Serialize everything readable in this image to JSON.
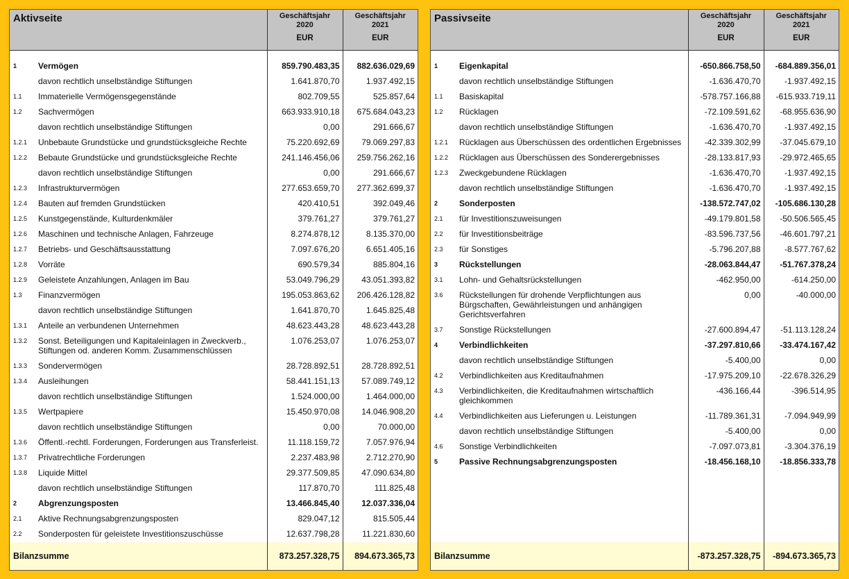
{
  "aktiv": {
    "title": "Aktivseite",
    "columns": [
      {
        "year": "Geschäftsjahr\n2020",
        "unit": "EUR"
      },
      {
        "year": "Geschäftsjahr\n2021",
        "unit": "EUR"
      }
    ],
    "rows": [
      [
        "1",
        "Vermögen",
        "859.790.483,35",
        "882.636.029,69"
      ],
      [
        null,
        "davon rechtlich unselbständige Stiftungen",
        "1.641.870,70",
        "1.937.492,15"
      ],
      [
        "1.1",
        "Immaterielle Vermögensgegenstände",
        "802.709,55",
        "525.857,64"
      ],
      [
        "1.2",
        "Sachvermögen",
        "663.933.910,18",
        "675.684.043,23"
      ],
      [
        null,
        "davon rechtlich unselbständige Stiftungen",
        "0,00",
        "291.666,67"
      ],
      [
        "1.2.1",
        "Unbebaute Grundstücke und grundstücksgleiche Rechte",
        "75.220.692,69",
        "79.069.297,83"
      ],
      [
        "1.2.2",
        "Bebaute Grundstücke und grundstücksgleiche Rechte",
        "241.146.456,06",
        "259.756.262,16"
      ],
      [
        null,
        "davon rechtlich unselbständige Stiftungen",
        "0,00",
        "291.666,67"
      ],
      [
        "1.2.3",
        "Infrastrukturvermögen",
        "277.653.659,70",
        "277.362.699,37"
      ],
      [
        "1.2.4",
        "Bauten auf fremden Grundstücken",
        "420.410,51",
        "392.049,46"
      ],
      [
        "1.2.5",
        "Kunstgegenstände, Kulturdenkmäler",
        "379.761,27",
        "379.761,27"
      ],
      [
        "1.2.6",
        "Maschinen und technische Anlagen, Fahrzeuge",
        "8.274.878,12",
        "8.135.370,00"
      ],
      [
        "1.2.7",
        "Betriebs- und Geschäftsausstattung",
        "7.097.676,20",
        "6.651.405,16"
      ],
      [
        "1.2.8",
        "Vorräte",
        "690.579,34",
        "885.804,16"
      ],
      [
        "1.2.9",
        "Geleistete Anzahlungen, Anlagen im Bau",
        "53.049.796,29",
        "43.051.393,82"
      ],
      [
        "1.3",
        "Finanzvermögen",
        "195.053.863,62",
        "206.426.128,82"
      ],
      [
        null,
        "davon rechtlich unselbständige Stiftungen",
        "1.641.870,70",
        "1.645.825,48"
      ],
      [
        "1.3.1",
        "Anteile an verbundenen Unternehmen",
        "48.623.443,28",
        "48.623.443,28"
      ],
      [
        "1.3.2",
        "Sonst. Beteiligungen und Kapitaleinlagen in Zweckverb.,\nStiftungen od. anderen Komm. Zusammenschlüssen",
        "1.076.253,07",
        "1.076.253,07"
      ],
      [
        "1.3.3",
        "Sondervermögen",
        "28.728.892,51",
        "28.728.892,51"
      ],
      [
        "1.3.4",
        "Ausleihungen",
        "58.441.151,13",
        "57.089.749,12"
      ],
      [
        null,
        "davon rechtlich unselbständige Stiftungen",
        "1.524.000,00",
        "1.464.000,00"
      ],
      [
        "1.3.5",
        "Wertpapiere",
        "15.450.970,08",
        "14.046.908,20"
      ],
      [
        null,
        "davon rechtlich unselbständige Stiftungen",
        "0,00",
        "70.000,00"
      ],
      [
        "1.3.6",
        "Öffentl.-rechtl. Forderungen, Forderungen aus Transferleist.",
        "11.118.159,72",
        "7.057.976,94"
      ],
      [
        "1.3.7",
        "Privatrechtliche Forderungen",
        "2.237.483,98",
        "2.712.270,90"
      ],
      [
        "1.3.8",
        "Liquide Mittel",
        "29.377.509,85",
        "47.090.634,80"
      ],
      [
        null,
        "davon rechtlich unselbständige Stiftungen",
        "117.870,70",
        "111.825,48"
      ],
      [
        "2",
        "Abgrenzungsposten",
        "13.466.845,40",
        "12.037.336,04"
      ],
      [
        "2.1",
        "Aktive Rechnungsabgrenzungsposten",
        "829.047,12",
        "815.505,44"
      ],
      [
        "2.2",
        "Sonderposten für geleistete Investitionszuschüsse",
        "12.637.798,28",
        "11.221.830,60"
      ]
    ],
    "total": [
      "Bilanzsumme",
      "873.257.328,75",
      "894.673.365,73"
    ]
  },
  "passiv": {
    "title": "Passivseite",
    "columns": [
      {
        "year": "Geschäftsjahr\n2020",
        "unit": "EUR"
      },
      {
        "year": "Geschäftsjahr\n2021",
        "unit": "EUR"
      }
    ],
    "rows": [
      [
        "1",
        "Eigenkapital",
        "-650.866.758,50",
        "-684.889.356,01"
      ],
      [
        null,
        "davon rechtlich unselbständige Stiftungen",
        "-1.636.470,70",
        "-1.937.492,15"
      ],
      [
        "1.1",
        "Basiskapital",
        "-578.757.166,88",
        "-615.933.719,11"
      ],
      [
        "1.2",
        "Rücklagen",
        "-72.109.591,62",
        "-68.955.636,90"
      ],
      [
        null,
        "davon rechtlich unselbständige Stiftungen",
        "-1.636.470,70",
        "-1.937.492,15"
      ],
      [
        "1.2.1",
        "Rücklagen aus Überschüssen des ordentlichen Ergebnisses",
        "-42.339.302,99",
        "-37.045.679,10"
      ],
      [
        "1.2.2",
        "Rücklagen aus Überschüssen des Sonderergebnisses",
        "-28.133.817,93",
        "-29.972.465,65"
      ],
      [
        "1.2.3",
        "Zweckgebundene Rücklagen",
        "-1.636.470,70",
        "-1.937.492,15"
      ],
      [
        null,
        "davon rechtlich unselbständige Stiftungen",
        "-1.636.470,70",
        "-1.937.492,15"
      ],
      [
        "2",
        "Sonderposten",
        "-138.572.747,02",
        "-105.686.130,28"
      ],
      [
        "2.1",
        "für Investitionszuweisungen",
        "-49.179.801,58",
        "-50.506.565,45"
      ],
      [
        "2.2",
        "für Investitionsbeiträge",
        "-83.596.737,56",
        "-46.601.797,21"
      ],
      [
        "2.3",
        "für Sonstiges",
        "-5.796.207,88",
        "-8.577.767,62"
      ],
      [
        "3",
        "Rückstellungen",
        "-28.063.844,47",
        "-51.767.378,24"
      ],
      [
        "3.1",
        "Lohn- und Gehaltsrückstellungen",
        "-462.950,00",
        "-614.250,00"
      ],
      [
        "3.6",
        "Rückstellungen für drohende Verpflichtungen aus\nBürgschaften, Gewährleistungen und anhängigen\nGerichtsverfahren",
        "0,00",
        "-40.000,00"
      ],
      [
        "3.7",
        "Sonstige Rückstellungen",
        "-27.600.894,47",
        "-51.113.128,24"
      ],
      [
        "4",
        "Verbindlichkeiten",
        "-37.297.810,66",
        "-33.474.167,42"
      ],
      [
        null,
        "davon rechtlich unselbständige Stiftungen",
        "-5.400,00",
        "0,00"
      ],
      [
        "4.2",
        "Verbindlichkeiten aus Kreditaufnahmen",
        "-17.975.209,10",
        "-22.678.326,29"
      ],
      [
        "4.3",
        "Verbindlichkeiten, die Kreditaufnahmen wirtschaftlich\ngleichkommen",
        "-436.166,44",
        "-396.514,95"
      ],
      [
        "4.4",
        "Verbindlichkeiten aus Lieferungen u. Leistungen",
        "-11.789.361,31",
        "-7.094.949,99"
      ],
      [
        null,
        "davon rechtlich unselbständige Stiftungen",
        "-5.400,00",
        "0,00"
      ],
      [
        "4.6",
        "Sonstige Verbindlichkeiten",
        "-7.097.073,81",
        "-3.304.376,19"
      ],
      [
        "5",
        "Passive Rechnungsabgrenzungsposten",
        "-18.456.168,10",
        "-18.856.333,78"
      ]
    ],
    "total": [
      "Bilanzsumme",
      "-873.257.328,75",
      "-894.673.365,73"
    ]
  }
}
